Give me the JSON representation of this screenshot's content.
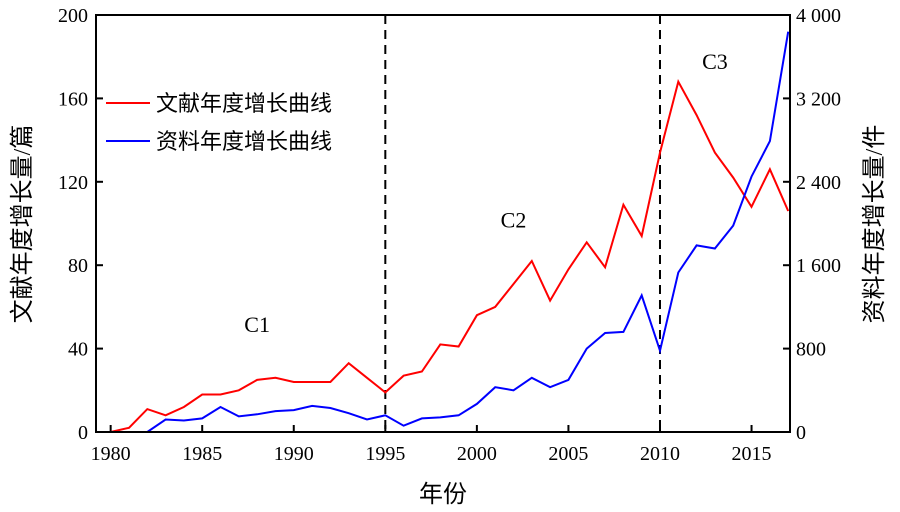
{
  "chart_data": {
    "type": "line",
    "title": "",
    "xlabel": "年份",
    "ylabel": "文献年度增长量/篇",
    "ylabel_right": "资料年度增长量/件",
    "xlim": [
      1979.2,
      2017.1
    ],
    "ylim": [
      0,
      200
    ],
    "ylim_right": [
      0,
      4000
    ],
    "xticks": [
      1980,
      1985,
      1990,
      1995,
      2000,
      2005,
      2010,
      2015
    ],
    "xtick_labels": [
      "1980",
      "1985",
      "1990",
      "1995",
      "2000",
      "2005",
      "2010",
      "2015"
    ],
    "yticks": [
      0,
      40,
      80,
      120,
      160,
      200
    ],
    "ytick_labels": [
      "0",
      "40",
      "80",
      "120",
      "160",
      "200"
    ],
    "yticks_right": [
      0,
      800,
      1600,
      2400,
      3200,
      4000
    ],
    "ytick_labels_right": [
      "0",
      "800",
      "1 600",
      "2 400",
      "3 200",
      "4 000"
    ],
    "grid": false,
    "legend_position": "top-left",
    "x": [
      1980,
      1981,
      1982,
      1983,
      1984,
      1985,
      1986,
      1987,
      1988,
      1989,
      1990,
      1991,
      1992,
      1993,
      1994,
      1995,
      1996,
      1997,
      1998,
      1999,
      2000,
      2001,
      2002,
      2003,
      2004,
      2005,
      2006,
      2007,
      2008,
      2009,
      2010,
      2011,
      2012,
      2013,
      2014,
      2015,
      2016,
      2017
    ],
    "series": [
      {
        "name": "文献年度增长曲线",
        "axis": "left",
        "color": "#ff0000",
        "values": [
          0,
          2,
          11,
          8,
          12,
          18,
          18,
          20,
          25,
          26,
          24,
          24,
          24,
          33,
          26,
          19,
          27,
          29,
          42,
          41,
          56,
          60,
          71,
          82,
          63,
          78,
          91,
          79,
          109,
          94,
          134,
          168,
          152,
          134,
          122,
          108,
          126,
          106
        ]
      },
      {
        "name": "资料年度增长曲线",
        "axis": "right",
        "color": "#0000ff",
        "values": [
          0,
          0,
          0,
          120,
          110,
          130,
          240,
          150,
          170,
          200,
          210,
          250,
          230,
          180,
          120,
          160,
          60,
          130,
          140,
          160,
          270,
          430,
          400,
          520,
          430,
          500,
          800,
          950,
          960,
          1310,
          780,
          1530,
          1790,
          1760,
          1980,
          2450,
          2790,
          3840
        ]
      }
    ],
    "vlines": [
      1995,
      2010
    ],
    "annotations": [
      {
        "text": "C1",
        "x": 1988,
        "y": 48
      },
      {
        "text": "C2",
        "x": 2002,
        "y": 98
      },
      {
        "text": "C3",
        "x": 2013,
        "y": 174
      }
    ]
  }
}
